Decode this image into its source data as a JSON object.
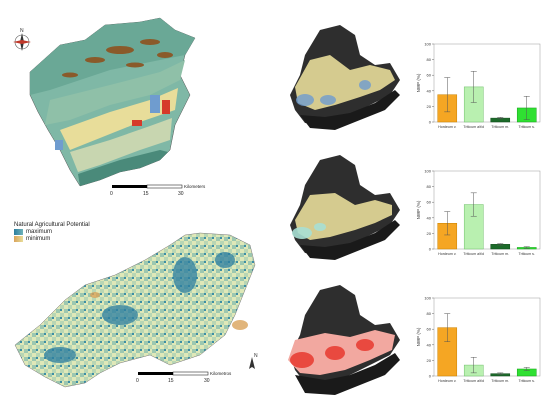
{
  "colors": {
    "land_dark": "#4a8a7a",
    "land_teal": "#7fb8a6",
    "land_yellow": "#e8dd9a",
    "land_brown": "#8a5a2a",
    "land_red": "#d63a2a",
    "land_blue": "#6f9ccf",
    "relief_dark": "#2e2e2e",
    "bar_orange": "#f5a623",
    "bar_lightgreen": "#b9f0b0",
    "bar_darkgreen": "#1c6b2a",
    "bar_green": "#2fe032",
    "potential_max": "#2c7ea0",
    "potential_min": "#d9a35a",
    "heat_red": "#e8392f"
  },
  "icons": [
    "compass-rose-icon",
    "north-arrow-icon"
  ],
  "scalebar_top": {
    "ticks": [
      "0",
      "15",
      "30"
    ],
    "unit": "Kilometers"
  },
  "scalebar_bottom": {
    "ticks": [
      "0",
      "15",
      "30"
    ],
    "unit": "Kilometros"
  },
  "legend": {
    "title": "Natural Agricultural Potential",
    "max_label": "maximum",
    "min_label": "minimum"
  },
  "chart_data": [
    {
      "type": "bar",
      "categories": [
        "Hordeum v.",
        "Triticum a/t/d",
        "Triticum m.",
        "Triticum s."
      ],
      "values": [
        35,
        45,
        5,
        18
      ],
      "error": [
        22,
        20,
        1,
        15
      ],
      "ylabel": "NWP (%)",
      "ylim": [
        0,
        100
      ],
      "yticks": [
        "0",
        "20",
        "40",
        "60",
        "80",
        "100"
      ]
    },
    {
      "type": "bar",
      "categories": [
        "Hordeum v.",
        "Triticum a/t/d",
        "Triticum m.",
        "Triticum s."
      ],
      "values": [
        33,
        57,
        6,
        2
      ],
      "error": [
        15,
        15,
        1,
        1
      ],
      "ylabel": "NWP (%)",
      "ylim": [
        0,
        100
      ],
      "yticks": [
        "0",
        "20",
        "40",
        "60",
        "80",
        "100"
      ]
    },
    {
      "type": "bar",
      "categories": [
        "Hordeum v.",
        "Triticum a/t/d",
        "Triticum m.",
        "Triticum s."
      ],
      "values": [
        62,
        14,
        3,
        9
      ],
      "error": [
        18,
        10,
        1,
        2
      ],
      "ylabel": "NWP (%)",
      "ylim": [
        0,
        100
      ],
      "yticks": [
        "0",
        "20",
        "40",
        "60",
        "80",
        "100"
      ]
    }
  ]
}
